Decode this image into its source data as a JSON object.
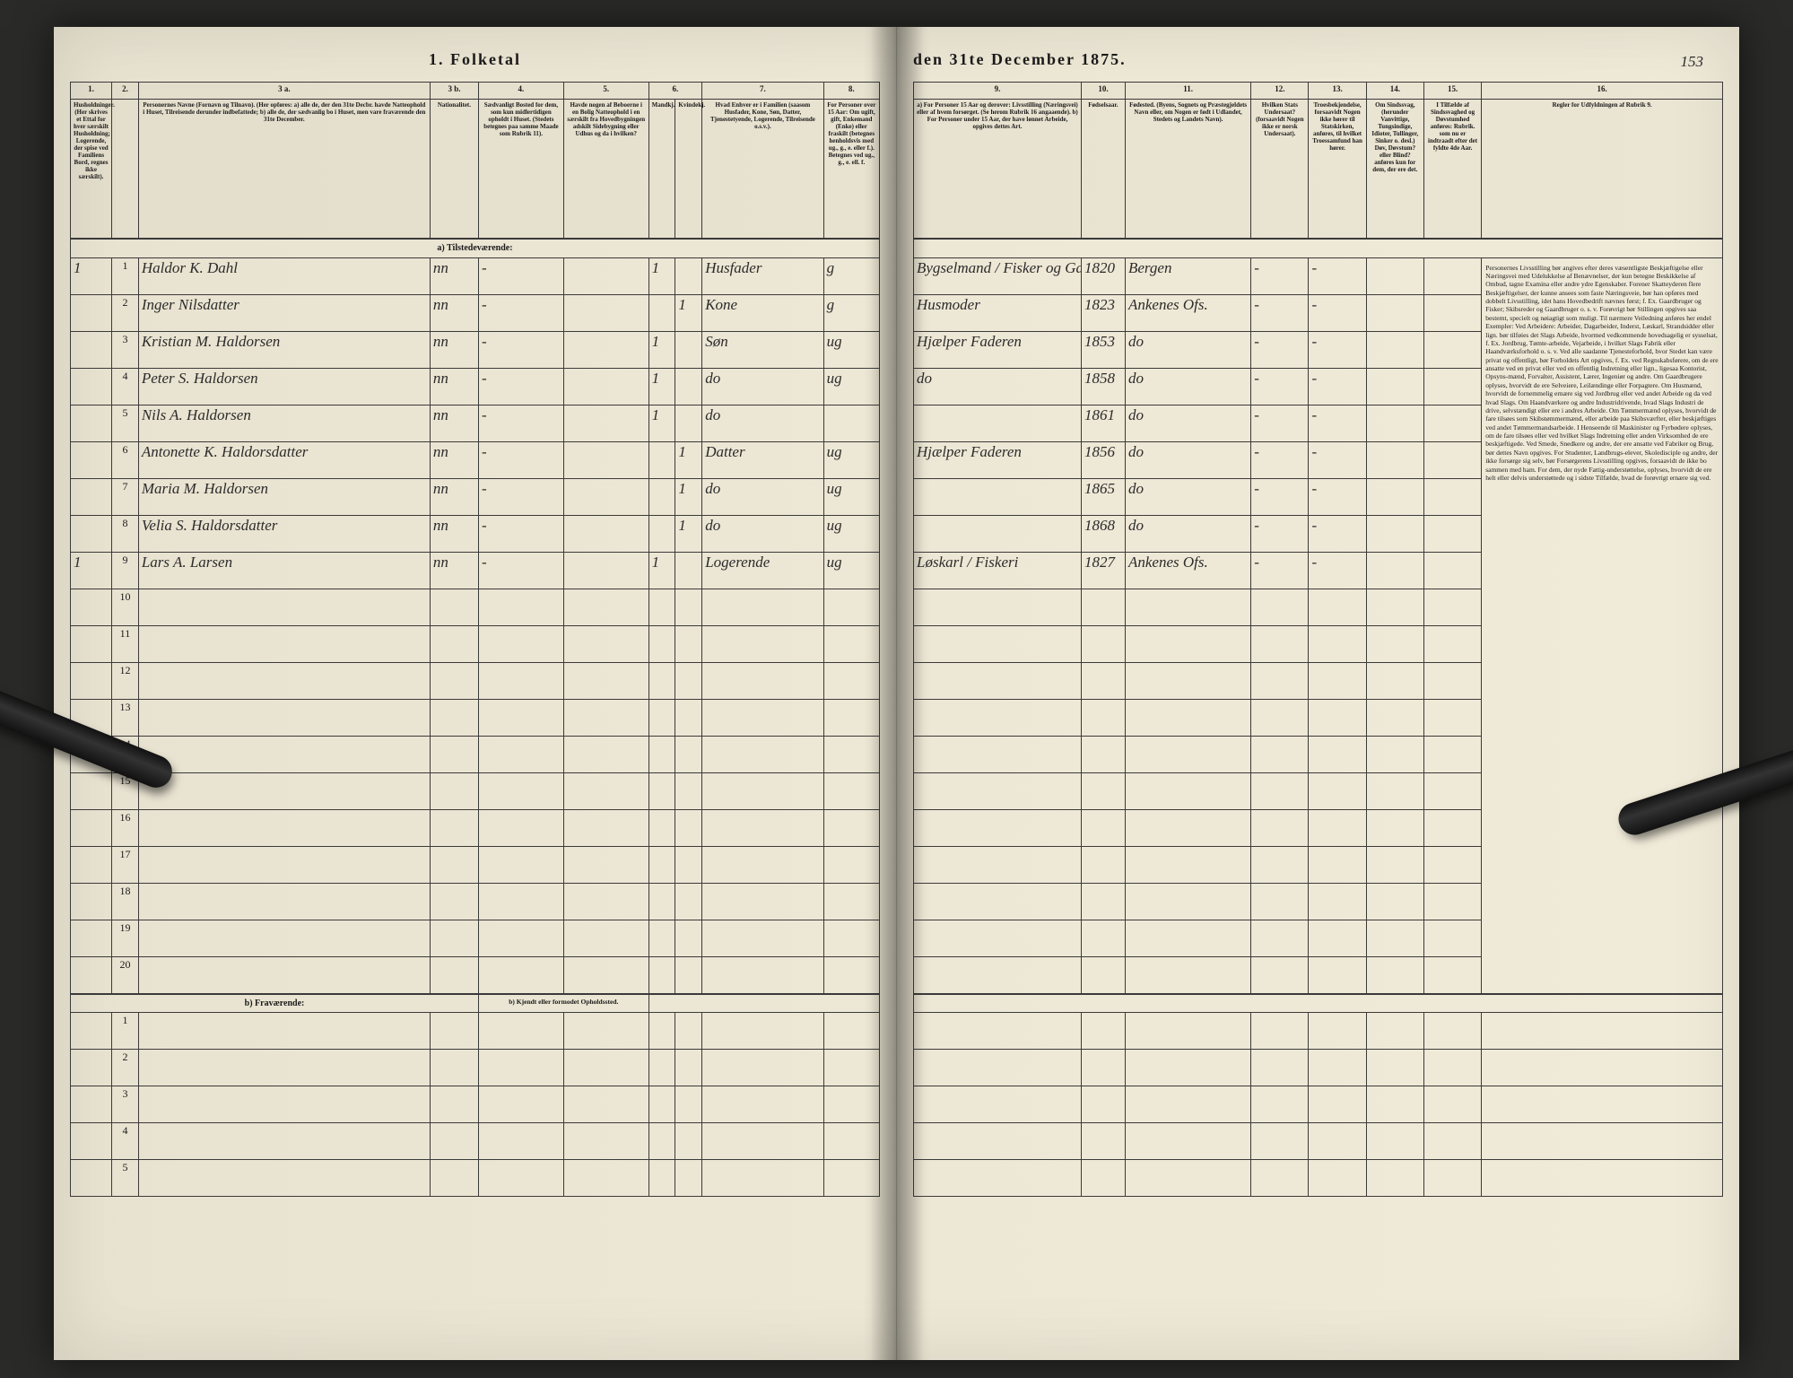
{
  "page_number_hand": "153",
  "title_left": "1.  Folketal",
  "title_right": "den 31te December 1875.",
  "left_columns": {
    "nums": [
      "1.",
      "2.",
      "3 a.",
      "3 b.",
      "4.",
      "5.",
      "6.",
      "7.",
      "8."
    ],
    "heads": [
      "Husholdninger. (Her skrives et Ettal for hver særskilt Husholdning; Logerende, der spise ved Familiens Bord, regnes ikke særskilt).",
      "Personernes Navne (Fornavn og Tilnavn). (Her opføres: a) alle de, der den 31te Decbr. havde Natteophold i Huset, Tilreisende derunder indbefattede; b) alle de, der sædvanlig bo i Huset, men vare fraværende den 31te December.",
      "Nationalitet.",
      "Sædvanligt Bosted for dem, som kun midlertidigen opholdt i Huset. (Stedets betegnes paa samme Maade som Rubrik 11).",
      "Havde nogen af Beboerne i en Bolig Natteophold i en særskilt fra Hovedbygningen adskilt Sidebygning eller Udhus og da i hvilken?",
      "Kjøn. Mandkjøn. Kvindekjøn.",
      "Hvad Enhver er i Familien (saasom Husfader, Kone, Søn, Datter, Tjenestetyende, Logerende, Tilreisende o.s.v.).",
      "For Personer over 15 Aar: Om ugift, gift, Enkemand (Enke) eller fraskilt (betegnes henholdsvis med ug., g., e. eller f.). Betegnes ved ug., g., e. ell. f."
    ]
  },
  "right_columns": {
    "nums": [
      "9.",
      "10.",
      "11.",
      "12.",
      "13.",
      "14.",
      "15.",
      "16."
    ],
    "heads": [
      "a) For Personer 15 Aar og derover: Livsstilling (Næringsvei) eller af hvem forsørget. (Se herom Rubrik 16 angaaende). b) For Personer under 15 Aar, der have lønnet Arbeide, opgives dettes Art.",
      "Fødselsaar.",
      "Fødested. (Byens, Sognets og Præstegjeldets Navn eller, om Nogen er født i Udlandet, Stedets og Landets Navn).",
      "Hvilken Stats Undersaat? (forsaavidt Nogen ikke er norsk Undersaat).",
      "Troesbekjendelse, forsaavidt Nogen ikke hører til Statskirken, anføres, til hvilket Troessamfund han hører.",
      "Om Sindssvag, (herunder Vanvittige, Tungsindige, Idioter, Tullinger, Sinker o. desl.) Døv, Døvstum? eller Blind? anføres kun for dem, der ere det.",
      "I Tilfælde af Sindssvaghed og Døvstumhed anføres: Rubrik. som nu er indtraadt efter det fyldte 4de Aar.",
      "Regler for Udfyldningen af Rubrik 9."
    ]
  },
  "section_a": "a) Tilstede­værende:",
  "section_b": "b) Fraværende:",
  "section_b_right": "b) Kjendt eller formodet Opholdssted.",
  "entries": [
    {
      "hh": "1",
      "n": "1",
      "name": "Haldor K. Dahl",
      "nat": "nn",
      "bs": "-",
      "side": "",
      "mk": "1",
      "kk": "",
      "fam": "Husfader",
      "civ": "g",
      "stilling": "Bygselmand / Fisker og Gaardbr",
      "aar": "1820",
      "fsted": "Bergen",
      "stat": "-",
      "tro": "-",
      "sind": "",
      "dov": ""
    },
    {
      "hh": "",
      "n": "2",
      "name": "Inger Nilsdatter",
      "nat": "nn",
      "bs": "-",
      "side": "",
      "mk": "",
      "kk": "1",
      "fam": "Kone",
      "civ": "g",
      "stilling": "Husmoder",
      "aar": "1823",
      "fsted": "Ankenes Ofs.",
      "stat": "-",
      "tro": "-",
      "sind": "",
      "dov": ""
    },
    {
      "hh": "",
      "n": "3",
      "name": "Kristian M. Haldorsen",
      "nat": "nn",
      "bs": "-",
      "side": "",
      "mk": "1",
      "kk": "",
      "fam": "Søn",
      "civ": "ug",
      "stilling": "Hjælper Faderen",
      "aar": "1853",
      "fsted": "do",
      "stat": "-",
      "tro": "-",
      "sind": "",
      "dov": ""
    },
    {
      "hh": "",
      "n": "4",
      "name": "Peter S. Haldorsen",
      "nat": "nn",
      "bs": "-",
      "side": "",
      "mk": "1",
      "kk": "",
      "fam": "do",
      "civ": "ug",
      "stilling": "do",
      "aar": "1858",
      "fsted": "do",
      "stat": "-",
      "tro": "-",
      "sind": "",
      "dov": ""
    },
    {
      "hh": "",
      "n": "5",
      "name": "Nils A. Haldorsen",
      "nat": "nn",
      "bs": "-",
      "side": "",
      "mk": "1",
      "kk": "",
      "fam": "do",
      "civ": "",
      "stilling": "",
      "aar": "1861",
      "fsted": "do",
      "stat": "-",
      "tro": "-",
      "sind": "",
      "dov": ""
    },
    {
      "hh": "",
      "n": "6",
      "name": "Antonette K. Haldorsdatter",
      "nat": "nn",
      "bs": "-",
      "side": "",
      "mk": "",
      "kk": "1",
      "fam": "Datter",
      "civ": "ug",
      "stilling": "Hjælper Faderen",
      "aar": "1856",
      "fsted": "do",
      "stat": "-",
      "tro": "-",
      "sind": "",
      "dov": ""
    },
    {
      "hh": "",
      "n": "7",
      "name": "Maria M. Haldorsen",
      "nat": "nn",
      "bs": "-",
      "side": "",
      "mk": "",
      "kk": "1",
      "fam": "do",
      "civ": "ug",
      "stilling": "",
      "aar": "1865",
      "fsted": "do",
      "stat": "-",
      "tro": "-",
      "sind": "",
      "dov": ""
    },
    {
      "hh": "",
      "n": "8",
      "name": "Velia S. Haldorsdatter",
      "nat": "nn",
      "bs": "-",
      "side": "",
      "mk": "",
      "kk": "1",
      "fam": "do",
      "civ": "ug",
      "stilling": "",
      "aar": "1868",
      "fsted": "do",
      "stat": "-",
      "tro": "-",
      "sind": "",
      "dov": ""
    },
    {
      "hh": "1",
      "n": "9",
      "name": "Lars A. Larsen",
      "nat": "nn",
      "bs": "-",
      "side": "",
      "mk": "1",
      "kk": "",
      "fam": "Logerende",
      "civ": "ug",
      "stilling": "Løskarl / Fiskeri",
      "aar": "1827",
      "fsted": "Ankenes Ofs.",
      "stat": "-",
      "tro": "-",
      "sind": "",
      "dov": ""
    }
  ],
  "empty_rows_a": [
    "10",
    "11",
    "12",
    "13",
    "14",
    "15",
    "16",
    "17",
    "18",
    "19",
    "20"
  ],
  "empty_rows_b": [
    "1",
    "2",
    "3",
    "4",
    "5"
  ],
  "rules_text": "Personernes Livsstilling bør angives efter deres væsentligste Beskjæftigelse eller Næringsvei med Udelukkelse af Benævnelser, der kun betegne Beskikkelse af Ombud, tagne Examina eller andre ydre Egenskaber. Forener Skatteyderen flere Beskjæftigelser, der kunne ansees som faste Næringsveie, bør han opføres med dobbelt Livsstilling, idet hans Hovedbedrift nævnes først; f. Ex. Gaardbruger og Fisker; Skibsreder og Gaardbruger o. s. v. Forøvrigt bør Stillingen opgives saa bestemt, specielt og nøiagtigt som muligt. Til nærmere Veiledning anføres her endel Exempler: Ved Arbeidere: Arbeider, Dagarbeider, Inderst, Løskarl, Strandsidder eller lign. bør tilføies det Slags Arbeide, hvormed vedkommende hovedsagelig er sysselsat, f. Ex. Jordbrug, Tømte-arbeide, Vejarbeide, i hvilket Slags Fabrik eller Haandværksforhold o. s. v. Ved alle saadanne Tjenesteforhold, hvor Stedet kan være privat og offentligt, bør Forholdets Art opgives, f. Ex. ved Regnskabsførere, om de ere ansatte ved en privat eller ved en offentlig Indretning eller lign., ligesaa Kontorist, Opsyns-mænd, Forvalter, Assistent, Lærer, Ingeniør og andre. Om Gaardbrugere oplyses, hvorvidt de ere Selveiere, Leilændinge eller Forpagtere. Om Husmænd, hvorvidt de fornemmelig ernære sig ved Jordbrug eller ved andet Arbeide og da ved hvad Slags. Om Haandværkere og andre Industridrivende, hvad Slags Industri de drive, selvstændigt eller ere i andres Arbeide. Om Tømmermænd oplyses, hvorvidt de fare tilsøes som Skibstømmermænd, eller arbeide paa Skibsværfter, eller beskjæftiges ved andet Tømmermandsarbeide. I Henseende til Maskinister og Fyrbødere oplyses, om de fare tilsøes eller ved hvilket Slags Indretning eller anden Virksomhed de ere beskjæftigede. Ved Smede, Snedkere og andre, der ere ansatte ved Fabriker og Brug, bør dettes Navn opgives. For Studenter, Landbrugs-elever, Skoledisciple og andre, der ikke forsørge sig selv, bør Forsørgerens Livsstilling opgives, forsaavidt de ikke bo sammen med ham. For dem, der nyde Fattig-understøttelse, oplyses, hvorvidt de ere helt eller delvis understøttede og i sidste Tilfælde, hvad de forøvrigt ernære sig ved.",
  "colors": {
    "paper": "#ede7d5",
    "ink": "#1a1a1a",
    "border": "#3a3a3a",
    "hand_ink": "#2b2b2b"
  }
}
